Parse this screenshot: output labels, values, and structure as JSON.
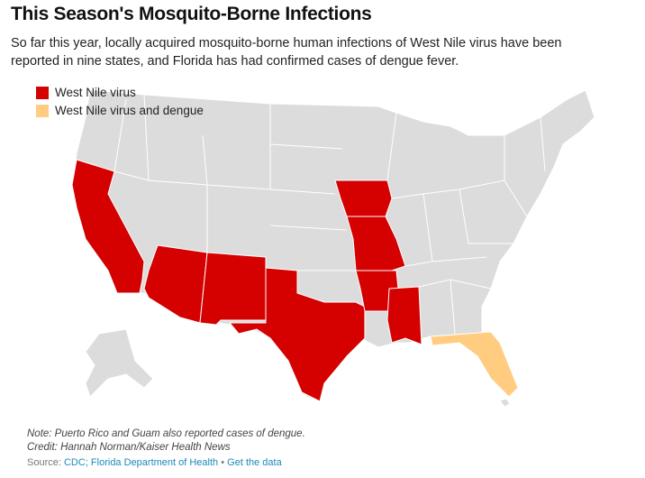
{
  "header": {
    "title": "This Season's Mosquito-Borne Infections",
    "subtitle_lines": [
      "So far this year, locally acquired mosquito-borne human infections of West Nile virus have been",
      "reported in nine states, and Florida has had confirmed cases of dengue fever."
    ]
  },
  "legend": [
    {
      "label": "West Nile virus",
      "color": "#d50000"
    },
    {
      "label": "West Nile virus and dengue",
      "color": "#ffcc80"
    }
  ],
  "footer": {
    "note": "Note: Puerto Rico and Guam also reported cases of dengue.",
    "credit": "Credit: Hannah Norman/Kaiser Health News",
    "source": {
      "label": "Source:",
      "text": "CDC; Florida Department of Health",
      "separator": "•",
      "link": "Get the data"
    }
  }
}
